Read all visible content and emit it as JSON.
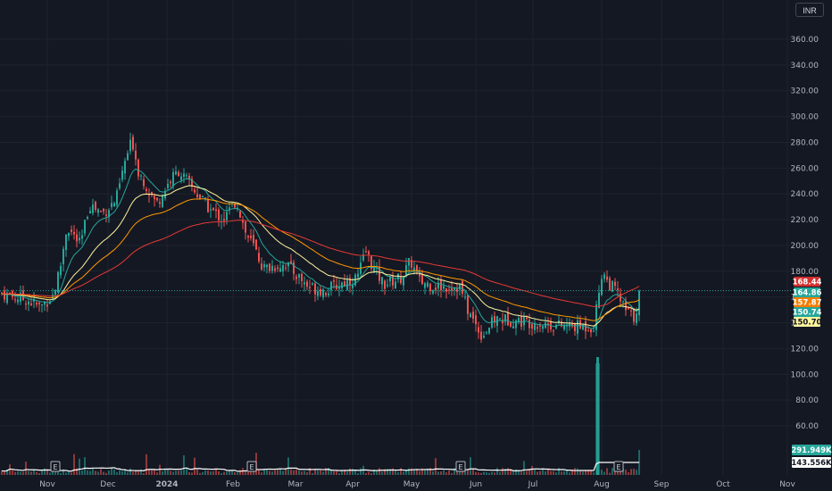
{
  "currency_button": "INR",
  "price_axis": {
    "ticks": [
      "360.00",
      "340.00",
      "320.00",
      "300.00",
      "280.00",
      "260.00",
      "240.00",
      "220.00",
      "200.00",
      "180.00",
      "160.00",
      "140.00",
      "120.00",
      "100.00",
      "80.00",
      "60.00"
    ],
    "tick_values": [
      360,
      340,
      320,
      300,
      280,
      260,
      240,
      220,
      200,
      180,
      160,
      140,
      120,
      100,
      80,
      60
    ]
  },
  "time_axis": {
    "labels": [
      "Nov",
      "Dec",
      "2024",
      "Feb",
      "Mar",
      "Apr",
      "May",
      "Jun",
      "Jul",
      "Aug",
      "Sep",
      "Oct",
      "Nov"
    ],
    "bold": [
      false,
      false,
      true,
      false,
      false,
      false,
      false,
      false,
      false,
      false,
      false,
      false,
      false
    ]
  },
  "price_badges": [
    {
      "text": "168.44",
      "value": 168.44,
      "bg": "#d32f2f",
      "fg": "#ffffff"
    },
    {
      "text": "164.86",
      "value": 164.86,
      "bg": "#26a69a",
      "fg": "#ffffff"
    },
    {
      "text": "157.87",
      "value": 157.87,
      "bg": "#f57c00",
      "fg": "#ffffff"
    },
    {
      "text": "150.74",
      "value": 150.74,
      "bg": "#26a69a",
      "fg": "#ffffff"
    },
    {
      "text": "150.70",
      "value": 150.7,
      "bg": "#fff59d",
      "fg": "#131722"
    }
  ],
  "volume_badges": [
    {
      "text": "291.949K",
      "bg": "#26a69a",
      "fg": "#ffffff"
    },
    {
      "text": "143.556K",
      "bg": "#ffffff",
      "fg": "#131722"
    }
  ],
  "earnings_markers": [
    "E",
    "E",
    "E",
    "E"
  ],
  "colors": {
    "up": "#26a69a",
    "down": "#ef5350",
    "ma_fast": "#26a69a",
    "ma_mid": "#fff59d",
    "ma_slow": "#ff9800",
    "ma_long": "#e53935",
    "grid": "#1e222d",
    "volume_ma": "#ffffff"
  },
  "chart_data": {
    "type": "candlestick",
    "x_range": [
      "2023-10-17",
      "2024-11-20"
    ],
    "y_range": [
      60,
      370
    ],
    "grid": true,
    "close_series_monthly": [
      {
        "month": "2023-10",
        "close": 165
      },
      {
        "month": "2023-11",
        "close": 210
      },
      {
        "month": "2023-12",
        "close": 265
      },
      {
        "month": "2024-01",
        "close": 250
      },
      {
        "month": "2024-02",
        "close": 195
      },
      {
        "month": "2024-03",
        "close": 168
      },
      {
        "month": "2024-04",
        "close": 188
      },
      {
        "month": "2024-05",
        "close": 170
      },
      {
        "month": "2024-06",
        "close": 148
      },
      {
        "month": "2024-07",
        "close": 137
      },
      {
        "month": "2024-08",
        "close": 164.86
      }
    ],
    "high_peak": 300,
    "low_trough": 125,
    "last_price": 164.86,
    "moving_averages": [
      {
        "color": "#e53935",
        "last": 168.44
      },
      {
        "color": "#ff9800",
        "last": 157.87
      },
      {
        "color": "#fff59d",
        "last": 150.7
      },
      {
        "color": "#26a69a",
        "last": 150.74
      }
    ],
    "volume_last": "291.949K",
    "volume_ma_last": "143.556K",
    "volume_spike_date": "2024-08-01"
  }
}
